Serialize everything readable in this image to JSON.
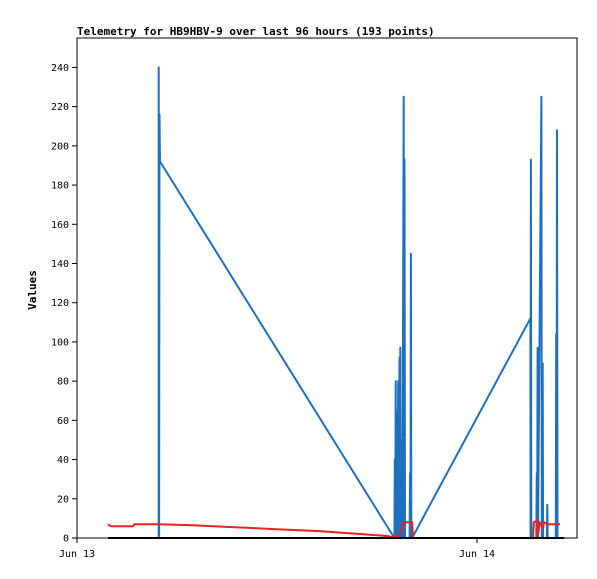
{
  "chart_data": {
    "type": "line",
    "title": "Telemetry for HB9HBV-9 over last 96 hours (193 points)",
    "xlabel": "",
    "ylabel": "Values",
    "x_ticks": [
      "Jun 13",
      "Jun 14"
    ],
    "y_ticks": [
      0,
      20,
      40,
      60,
      80,
      100,
      120,
      140,
      160,
      180,
      200,
      220,
      240
    ],
    "x_range_hours": [
      0,
      43
    ],
    "ylim": [
      0,
      255
    ],
    "grid": false,
    "legend": "none",
    "series": [
      {
        "color": "#1f6fbf",
        "points": [
          [
            6.0,
            0
          ],
          [
            6.0,
            240
          ],
          [
            6.05,
            0
          ],
          [
            6.1,
            216
          ],
          [
            6.15,
            192
          ],
          [
            33.9,
            0
          ],
          [
            33.95,
            40
          ],
          [
            34.0,
            0
          ],
          [
            34.05,
            80
          ],
          [
            34.1,
            0
          ],
          [
            34.2,
            65
          ],
          [
            34.25,
            0
          ],
          [
            34.35,
            80
          ],
          [
            34.4,
            0
          ],
          [
            34.5,
            92
          ],
          [
            34.55,
            0
          ],
          [
            34.6,
            97
          ],
          [
            34.65,
            0
          ],
          [
            34.7,
            50
          ],
          [
            34.72,
            0
          ],
          [
            34.8,
            17
          ],
          [
            34.85,
            0
          ],
          [
            35.0,
            225
          ],
          [
            35.05,
            0
          ],
          [
            35.1,
            193
          ],
          [
            35.15,
            0
          ],
          [
            35.3,
            0
          ],
          [
            35.7,
            0
          ],
          [
            35.75,
            33
          ],
          [
            35.8,
            0
          ],
          [
            35.85,
            145
          ],
          [
            35.9,
            0
          ],
          [
            36.0,
            0
          ],
          [
            50.0,
            112
          ],
          [
            50.02,
            0
          ],
          [
            50.05,
            193
          ],
          [
            50.1,
            0
          ],
          [
            50.7,
            0
          ],
          [
            50.75,
            33
          ],
          [
            50.8,
            0
          ],
          [
            50.85,
            97
          ],
          [
            50.9,
            0
          ],
          [
            51.3,
            225
          ],
          [
            51.35,
            0
          ],
          [
            51.45,
            89
          ],
          [
            51.5,
            0
          ],
          [
            51.95,
            0
          ],
          [
            52.0,
            17
          ],
          [
            52.05,
            0
          ],
          [
            52.6,
            0
          ],
          [
            53.0,
            0
          ],
          [
            53.05,
            104
          ],
          [
            53.1,
            0
          ],
          [
            53.15,
            208
          ],
          [
            53.2,
            0
          ]
        ]
      },
      {
        "color": "#e8231f",
        "points": [
          [
            0.0,
            7
          ],
          [
            0.3,
            6
          ],
          [
            3.0,
            6
          ],
          [
            3.1,
            7
          ],
          [
            6.0,
            7
          ],
          [
            10,
            6.5
          ],
          [
            15,
            5.5
          ],
          [
            20,
            4.5
          ],
          [
            25,
            3.5
          ],
          [
            30,
            2
          ],
          [
            33,
            1
          ],
          [
            34.3,
            0
          ],
          [
            35.0,
            8
          ],
          [
            36.0,
            8
          ],
          [
            36.1,
            0
          ],
          [
            50.3,
            0
          ],
          [
            50.4,
            8
          ],
          [
            50.8,
            9
          ],
          [
            50.85,
            0
          ],
          [
            51.1,
            8
          ],
          [
            51.5,
            5
          ],
          [
            51.6,
            8
          ],
          [
            52.2,
            7
          ],
          [
            53.5,
            7
          ]
        ]
      },
      {
        "color": "#000000",
        "points": [
          [
            0.0,
            0
          ],
          [
            54.0,
            0
          ]
        ]
      }
    ]
  }
}
